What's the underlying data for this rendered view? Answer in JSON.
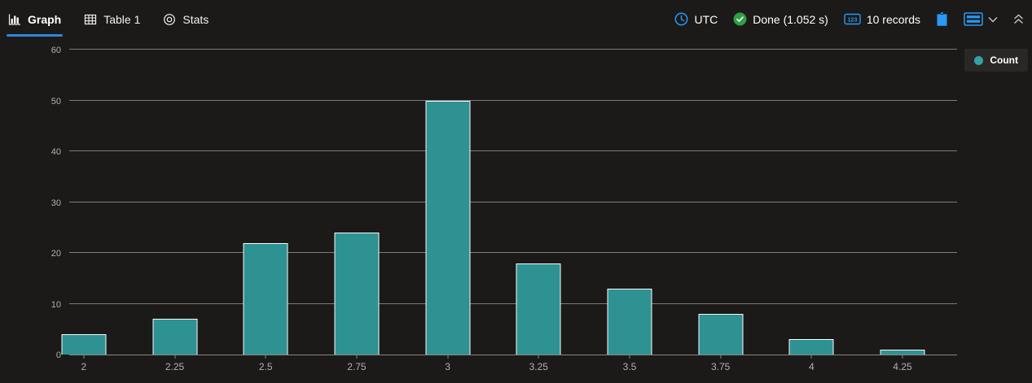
{
  "tabs": [
    {
      "label": "Graph",
      "icon": "bar-chart-icon",
      "active": true
    },
    {
      "label": "Table 1",
      "icon": "table-icon",
      "active": false
    },
    {
      "label": "Stats",
      "icon": "stats-icon",
      "active": false
    }
  ],
  "status": {
    "timezone": "UTC",
    "result": "Done (1.052 s)",
    "records": "10 records",
    "records_badge": "123"
  },
  "legend": {
    "label": "Count"
  },
  "colors": {
    "background": "#1b1a19",
    "accent_blue": "#2899f5",
    "tab_underline_blue": "#2b88d8",
    "success_green": "#2f9e44",
    "bar_fill": "#2d9291",
    "bar_border": "#fbfbfb",
    "legend_bg": "#292827",
    "legend_dot": "#34a2a2",
    "gridline": "#7d7b78",
    "axis_label": "#b3b0ad",
    "chevron_gray": "#c8c6c4"
  },
  "chart_data": {
    "type": "bar",
    "title": "",
    "xlabel": "",
    "ylabel": "",
    "categories": [
      "2",
      "2.25",
      "2.5",
      "2.75",
      "3",
      "3.25",
      "3.5",
      "3.75",
      "4",
      "4.25"
    ],
    "series": [
      {
        "name": "Count",
        "values": [
          4,
          7,
          22,
          24,
          50,
          18,
          13,
          8,
          3,
          1
        ]
      }
    ],
    "xlim": [
      1.96,
      4.4
    ],
    "ylim": [
      0,
      60
    ],
    "ytick_interval": 10,
    "grid": true,
    "legend_position": "top-right"
  }
}
